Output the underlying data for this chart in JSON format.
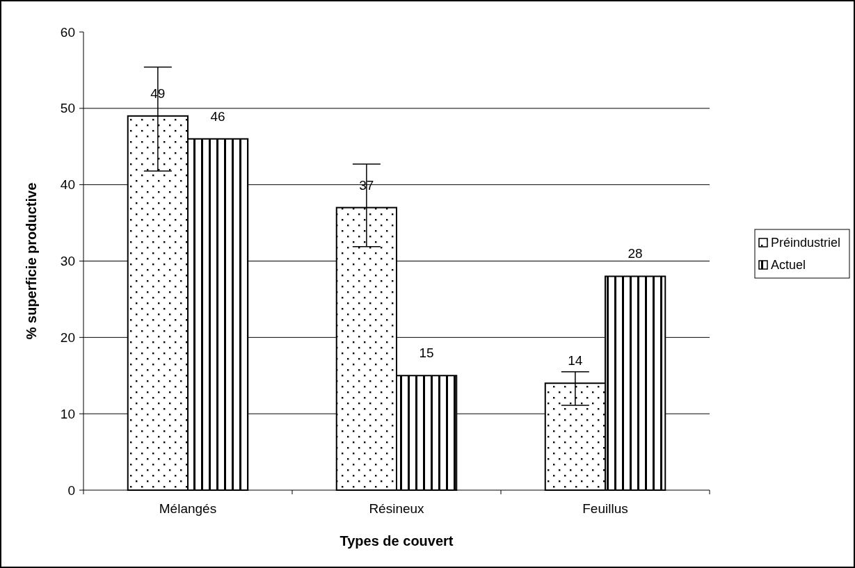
{
  "chart_data": {
    "type": "bar",
    "xlabel": "Types de couvert",
    "ylabel": "% superficie productive",
    "categories": [
      "Mélangés",
      "Résineux",
      "Feuillus"
    ],
    "series": [
      {
        "name": "Préindustriel",
        "color": "#000000",
        "values": [
          49,
          37,
          14
        ],
        "errors": [
          [
            41.8,
            55.4
          ],
          [
            31.9,
            42.7
          ],
          [
            11.1,
            15.5
          ]
        ]
      },
      {
        "name": "Actuel",
        "color": "#000000",
        "values": [
          46,
          15,
          28
        ]
      }
    ],
    "ylim": [
      0,
      60
    ],
    "yticks": [
      0,
      10,
      20,
      30,
      40,
      50,
      60
    ],
    "grid": "y",
    "legend": "right",
    "data_labels": true
  }
}
